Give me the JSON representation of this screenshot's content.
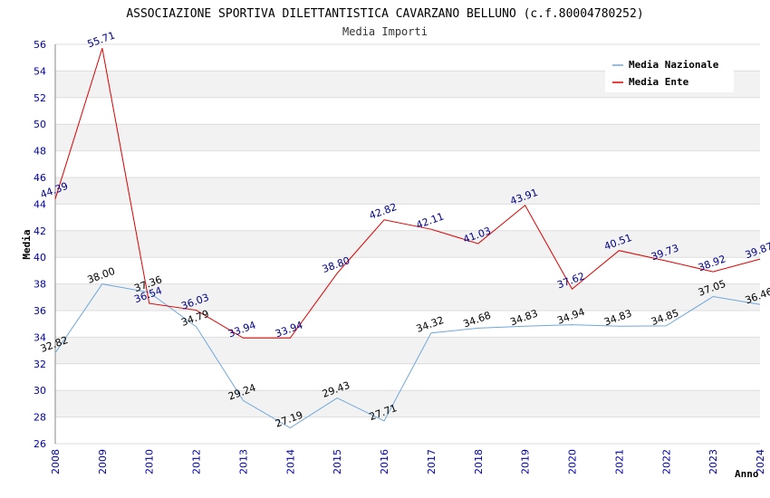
{
  "chart_data": {
    "type": "line",
    "title": "ASSOCIAZIONE SPORTIVA DILETTANTISTICA CAVARZANO BELLUNO (c.f.80004780252)",
    "subtitle": "Media Importi",
    "xlabel": "Anno",
    "ylabel": "Media",
    "ylim": [
      26,
      56
    ],
    "yticks": [
      26,
      28,
      30,
      32,
      34,
      36,
      38,
      40,
      42,
      44,
      46,
      48,
      50,
      52,
      54,
      56
    ],
    "categories": [
      "2008",
      "2009",
      "2010",
      "2012",
      "2013",
      "2014",
      "2015",
      "2016",
      "2017",
      "2018",
      "2019",
      "2020",
      "2021",
      "2022",
      "2023",
      "2024"
    ],
    "grid": true,
    "legend_position": "top-right",
    "series": [
      {
        "name": "Media Nazionale",
        "color": "#6fa8dc",
        "values": [
          32.82,
          38.0,
          37.36,
          34.79,
          29.24,
          27.19,
          29.43,
          27.71,
          34.32,
          34.68,
          34.83,
          34.94,
          34.83,
          34.85,
          37.05,
          36.46
        ],
        "labels": [
          "32.82",
          "38.00",
          "37.36",
          "34.79",
          "29.24",
          "27.19",
          "29.43",
          "27.71",
          "34.32",
          "34.68",
          "34.83",
          "34.94",
          "34.83",
          "34.85",
          "37.05",
          "36.46"
        ]
      },
      {
        "name": "Media Ente",
        "color": "#dd0000",
        "values": [
          44.39,
          55.71,
          36.54,
          36.03,
          33.94,
          33.94,
          38.8,
          42.82,
          42.11,
          41.03,
          43.91,
          37.62,
          40.51,
          39.73,
          38.92,
          39.87
        ],
        "labels": [
          "44.39",
          "55.71",
          "36.54",
          "36.03",
          "33.94",
          "33.94",
          "38.80",
          "42.82",
          "42.11",
          "41.03",
          "43.91",
          "37.62",
          "40.51",
          "39.73",
          "38.92",
          "39.87"
        ]
      }
    ]
  }
}
